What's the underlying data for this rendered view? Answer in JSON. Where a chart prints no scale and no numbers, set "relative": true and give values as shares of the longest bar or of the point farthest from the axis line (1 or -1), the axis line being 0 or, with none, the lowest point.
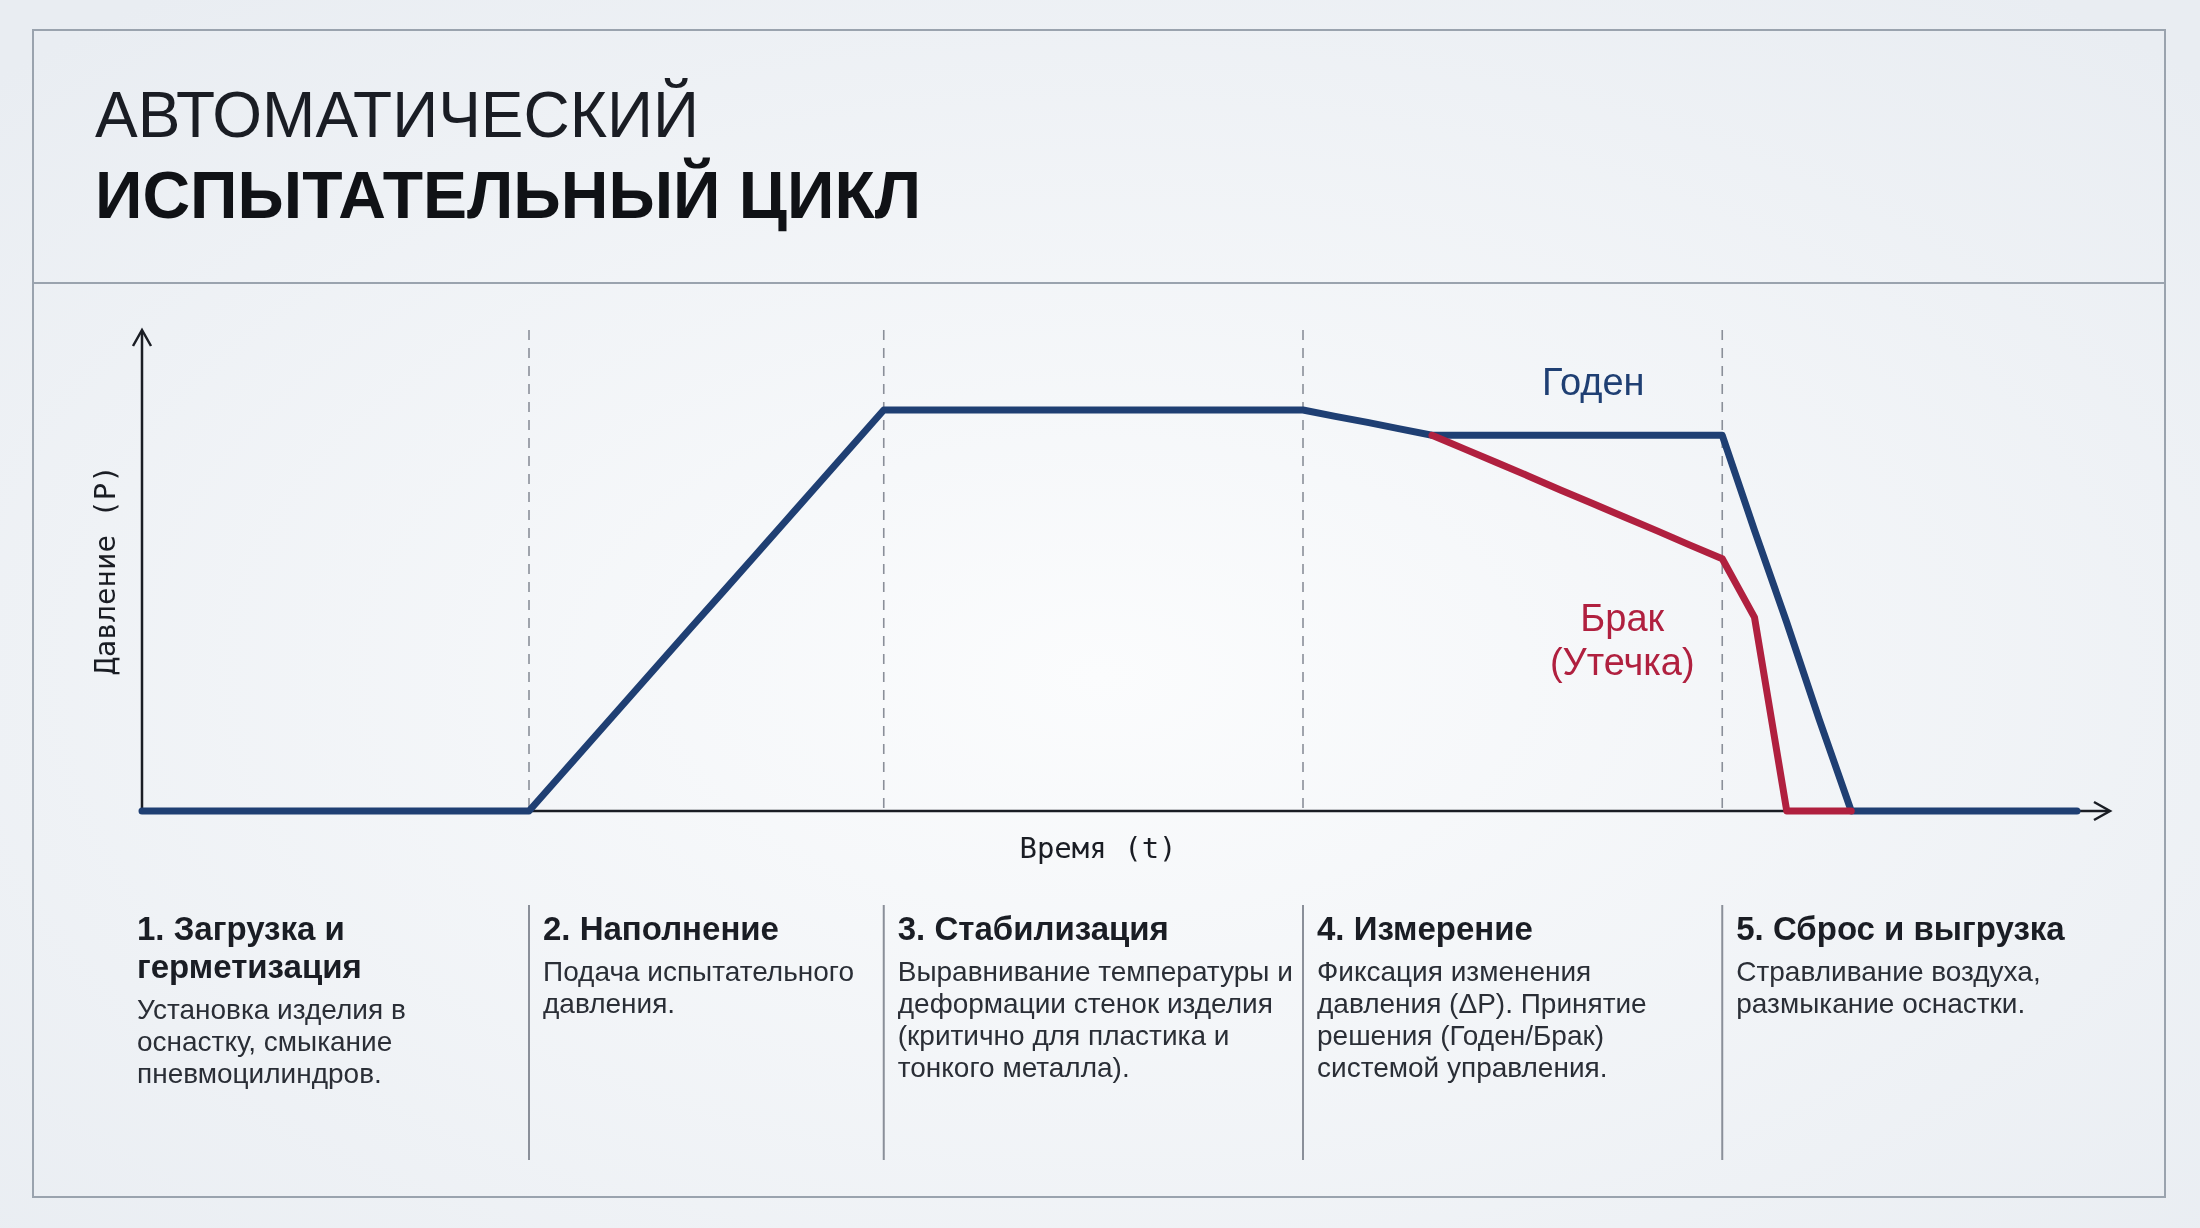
{
  "chart_data": {
    "type": "line",
    "title": "АВТОМАТИЧЕСКИЙ",
    "subtitle": "ИСПЫТАТЕЛЬНЫЙ ЦИКЛ",
    "xlabel": "Время (t)",
    "ylabel": "Давление (P)",
    "relative": true,
    "grid": "x",
    "line_style": "solid",
    "marker": "none",
    "categories": [
      null,
      null,
      null,
      null,
      null,
      null,
      null,
      null,
      null,
      null,
      null,
      null,
      null,
      null,
      null,
      null,
      null,
      null,
      null,
      null,
      null,
      null,
      null,
      null,
      null,
      null,
      null,
      null,
      null,
      null,
      null,
      null,
      null,
      null,
      null,
      null,
      null,
      null,
      null,
      null,
      null,
      null,
      null,
      null,
      null,
      null,
      null,
      null,
      null,
      null,
      null,
      null,
      null,
      null,
      null,
      null,
      null,
      null,
      null,
      null,
      null
    ],
    "series": [
      {
        "name": "Годен",
        "color": "#1f3f73",
        "values": [
          0,
          0,
          0,
          0,
          0,
          0,
          0,
          0,
          0,
          0,
          0,
          0,
          0,
          0.091,
          0.182,
          0.273,
          0.364,
          0.455,
          0.545,
          0.636,
          0.727,
          0.818,
          0.909,
          1,
          1,
          1,
          1,
          1,
          1,
          1,
          1,
          1,
          1,
          1,
          1,
          1,
          1,
          0.984,
          0.969,
          0.953,
          0.937,
          0.937,
          0.937,
          0.937,
          0.937,
          0.937,
          0.937,
          0.937,
          0.937,
          0.937,
          0.7,
          0.47,
          0.23,
          0,
          0,
          0,
          0,
          0,
          0,
          0,
          0
        ]
      },
      {
        "name": "Брак (Утечка)",
        "color": "#b0203f",
        "values": [
          null,
          null,
          null,
          null,
          null,
          null,
          null,
          null,
          null,
          null,
          null,
          null,
          null,
          null,
          null,
          null,
          null,
          null,
          null,
          null,
          null,
          null,
          null,
          null,
          null,
          null,
          null,
          null,
          null,
          null,
          null,
          null,
          null,
          null,
          null,
          null,
          null,
          null,
          null,
          null,
          0.937,
          0.903,
          0.869,
          0.835,
          0.8,
          0.766,
          0.732,
          0.698,
          0.663,
          0.629,
          0.483,
          0,
          0,
          0,
          null,
          null,
          null,
          null,
          null,
          null,
          null
        ]
      }
    ],
    "annotations": [
      "1. Загрузка и герметизация",
      "Установка изделия в оснастку, смыкание пневмоцилиндров.",
      "2. Наполнение",
      "Подача испытательного давления.",
      "3. Стабилизация",
      "Выравнивание температуры и деформации стенок изделия (критично для пластика и тонкого металла).",
      "4. Измерение",
      "Фиксация изменения давления (ΔP). Принятие решения (Годен/Брак) системой управления.",
      "5. Сброс и выгрузка",
      "Стравливание воздуха, размыкание оснастки."
    ]
  }
}
